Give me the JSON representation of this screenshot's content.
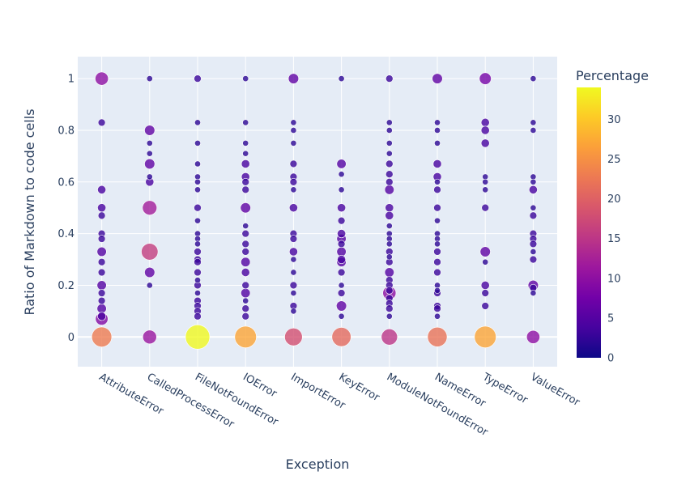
{
  "chart_data": {
    "type": "scatter",
    "title": "",
    "xlabel": "Exception",
    "ylabel": "Ratio of Markdown to code cells",
    "categories": [
      "AttributeError",
      "CalledProcessError",
      "FileNotFoundError",
      "IOError",
      "ImportError",
      "KeyError",
      "ModuleNotFoundError",
      "NameError",
      "TypeError",
      "ValueError"
    ],
    "ylim": [
      -0.115,
      1.085
    ],
    "yticks": [
      0,
      0.2,
      0.4,
      0.6,
      0.8,
      1
    ],
    "ytick_labels": [
      "0",
      "0.2",
      "0.4",
      "0.6",
      "0.8",
      "1"
    ],
    "colorbar": {
      "title": "Percentage",
      "range": [
        0,
        34
      ],
      "ticks": [
        0,
        5,
        10,
        15,
        20,
        25,
        30
      ],
      "tick_labels": [
        "0",
        "5",
        "10",
        "15",
        "20",
        "25",
        "30"
      ]
    },
    "colors": {
      "plot_bg": "#e5ecf6",
      "grid": "#ffffff",
      "text": "#2a3f5f"
    },
    "points": [
      {
        "cat": "AttributeError",
        "y": 0,
        "pct": 23
      },
      {
        "cat": "AttributeError",
        "y": 1,
        "pct": 10
      },
      {
        "cat": "AttributeError",
        "y": 0.83,
        "pct": 3
      },
      {
        "cat": "AttributeError",
        "y": 0.57,
        "pct": 4
      },
      {
        "cat": "AttributeError",
        "y": 0.5,
        "pct": 4
      },
      {
        "cat": "AttributeError",
        "y": 0.47,
        "pct": 3
      },
      {
        "cat": "AttributeError",
        "y": 0.4,
        "pct": 3
      },
      {
        "cat": "AttributeError",
        "y": 0.38,
        "pct": 3
      },
      {
        "cat": "AttributeError",
        "y": 0.33,
        "pct": 5
      },
      {
        "cat": "AttributeError",
        "y": 0.29,
        "pct": 3
      },
      {
        "cat": "AttributeError",
        "y": 0.25,
        "pct": 3
      },
      {
        "cat": "AttributeError",
        "y": 0.2,
        "pct": 5
      },
      {
        "cat": "AttributeError",
        "y": 0.17,
        "pct": 3
      },
      {
        "cat": "AttributeError",
        "y": 0.14,
        "pct": 3
      },
      {
        "cat": "AttributeError",
        "y": 0.11,
        "pct": 5
      },
      {
        "cat": "AttributeError",
        "y": 0.08,
        "pct": 4
      },
      {
        "cat": "AttributeError",
        "y": 0.07,
        "pct": 9
      },
      {
        "cat": "CalledProcessError",
        "y": 0,
        "pct": 11
      },
      {
        "cat": "CalledProcessError",
        "y": 1,
        "pct": 2
      },
      {
        "cat": "CalledProcessError",
        "y": 0.8,
        "pct": 6
      },
      {
        "cat": "CalledProcessError",
        "y": 0.75,
        "pct": 2
      },
      {
        "cat": "CalledProcessError",
        "y": 0.71,
        "pct": 2
      },
      {
        "cat": "CalledProcessError",
        "y": 0.67,
        "pct": 6
      },
      {
        "cat": "CalledProcessError",
        "y": 0.62,
        "pct": 2
      },
      {
        "cat": "CalledProcessError",
        "y": 0.6,
        "pct": 4
      },
      {
        "cat": "CalledProcessError",
        "y": 0.5,
        "pct": 12
      },
      {
        "cat": "CalledProcessError",
        "y": 0.33,
        "pct": 16
      },
      {
        "cat": "CalledProcessError",
        "y": 0.25,
        "pct": 6
      },
      {
        "cat": "CalledProcessError",
        "y": 0.2,
        "pct": 2
      },
      {
        "cat": "FileNotFoundError",
        "y": 0,
        "pct": 34
      },
      {
        "cat": "FileNotFoundError",
        "y": 1,
        "pct": 3
      },
      {
        "cat": "FileNotFoundError",
        "y": 0.83,
        "pct": 2
      },
      {
        "cat": "FileNotFoundError",
        "y": 0.75,
        "pct": 2
      },
      {
        "cat": "FileNotFoundError",
        "y": 0.67,
        "pct": 2
      },
      {
        "cat": "FileNotFoundError",
        "y": 0.62,
        "pct": 2
      },
      {
        "cat": "FileNotFoundError",
        "y": 0.6,
        "pct": 2
      },
      {
        "cat": "FileNotFoundError",
        "y": 0.57,
        "pct": 2
      },
      {
        "cat": "FileNotFoundError",
        "y": 0.5,
        "pct": 3
      },
      {
        "cat": "FileNotFoundError",
        "y": 0.45,
        "pct": 2
      },
      {
        "cat": "FileNotFoundError",
        "y": 0.4,
        "pct": 2
      },
      {
        "cat": "FileNotFoundError",
        "y": 0.38,
        "pct": 2
      },
      {
        "cat": "FileNotFoundError",
        "y": 0.36,
        "pct": 2
      },
      {
        "cat": "FileNotFoundError",
        "y": 0.33,
        "pct": 3
      },
      {
        "cat": "FileNotFoundError",
        "y": 0.3,
        "pct": 3
      },
      {
        "cat": "FileNotFoundError",
        "y": 0.29,
        "pct": 3
      },
      {
        "cat": "FileNotFoundError",
        "y": 0.25,
        "pct": 3
      },
      {
        "cat": "FileNotFoundError",
        "y": 0.22,
        "pct": 2
      },
      {
        "cat": "FileNotFoundError",
        "y": 0.2,
        "pct": 3
      },
      {
        "cat": "FileNotFoundError",
        "y": 0.17,
        "pct": 2
      },
      {
        "cat": "FileNotFoundError",
        "y": 0.14,
        "pct": 3
      },
      {
        "cat": "FileNotFoundError",
        "y": 0.12,
        "pct": 3
      },
      {
        "cat": "FileNotFoundError",
        "y": 0.1,
        "pct": 3
      },
      {
        "cat": "FileNotFoundError",
        "y": 0.08,
        "pct": 3
      },
      {
        "cat": "IOError",
        "y": 0,
        "pct": 27
      },
      {
        "cat": "IOError",
        "y": 1,
        "pct": 2
      },
      {
        "cat": "IOError",
        "y": 0.83,
        "pct": 2
      },
      {
        "cat": "IOError",
        "y": 0.75,
        "pct": 2
      },
      {
        "cat": "IOError",
        "y": 0.71,
        "pct": 2
      },
      {
        "cat": "IOError",
        "y": 0.67,
        "pct": 4
      },
      {
        "cat": "IOError",
        "y": 0.62,
        "pct": 4
      },
      {
        "cat": "IOError",
        "y": 0.6,
        "pct": 3
      },
      {
        "cat": "IOError",
        "y": 0.57,
        "pct": 3
      },
      {
        "cat": "IOError",
        "y": 0.5,
        "pct": 6
      },
      {
        "cat": "IOError",
        "y": 0.43,
        "pct": 2
      },
      {
        "cat": "IOError",
        "y": 0.4,
        "pct": 3
      },
      {
        "cat": "IOError",
        "y": 0.36,
        "pct": 3
      },
      {
        "cat": "IOError",
        "y": 0.33,
        "pct": 3
      },
      {
        "cat": "IOError",
        "y": 0.29,
        "pct": 5
      },
      {
        "cat": "IOError",
        "y": 0.25,
        "pct": 4
      },
      {
        "cat": "IOError",
        "y": 0.2,
        "pct": 3
      },
      {
        "cat": "IOError",
        "y": 0.17,
        "pct": 5
      },
      {
        "cat": "IOError",
        "y": 0.14,
        "pct": 2
      },
      {
        "cat": "IOError",
        "y": 0.11,
        "pct": 3
      },
      {
        "cat": "IOError",
        "y": 0.08,
        "pct": 3
      },
      {
        "cat": "ImportError",
        "y": 0,
        "pct": 18
      },
      {
        "cat": "ImportError",
        "y": 1,
        "pct": 6
      },
      {
        "cat": "ImportError",
        "y": 0.83,
        "pct": 2
      },
      {
        "cat": "ImportError",
        "y": 0.8,
        "pct": 2
      },
      {
        "cat": "ImportError",
        "y": 0.75,
        "pct": 2
      },
      {
        "cat": "ImportError",
        "y": 0.67,
        "pct": 3
      },
      {
        "cat": "ImportError",
        "y": 0.62,
        "pct": 3
      },
      {
        "cat": "ImportError",
        "y": 0.6,
        "pct": 3
      },
      {
        "cat": "ImportError",
        "y": 0.57,
        "pct": 2
      },
      {
        "cat": "ImportError",
        "y": 0.5,
        "pct": 4
      },
      {
        "cat": "ImportError",
        "y": 0.4,
        "pct": 3
      },
      {
        "cat": "ImportError",
        "y": 0.38,
        "pct": 3
      },
      {
        "cat": "ImportError",
        "y": 0.33,
        "pct": 4
      },
      {
        "cat": "ImportError",
        "y": 0.3,
        "pct": 2
      },
      {
        "cat": "ImportError",
        "y": 0.25,
        "pct": 2
      },
      {
        "cat": "ImportError",
        "y": 0.2,
        "pct": 3
      },
      {
        "cat": "ImportError",
        "y": 0.17,
        "pct": 2
      },
      {
        "cat": "ImportError",
        "y": 0.12,
        "pct": 3
      },
      {
        "cat": "ImportError",
        "y": 0.1,
        "pct": 2
      },
      {
        "cat": "KeyError",
        "y": 0,
        "pct": 21
      },
      {
        "cat": "KeyError",
        "y": 1,
        "pct": 2
      },
      {
        "cat": "KeyError",
        "y": 0.67,
        "pct": 5
      },
      {
        "cat": "KeyError",
        "y": 0.63,
        "pct": 2
      },
      {
        "cat": "KeyError",
        "y": 0.57,
        "pct": 2
      },
      {
        "cat": "KeyError",
        "y": 0.5,
        "pct": 4
      },
      {
        "cat": "KeyError",
        "y": 0.45,
        "pct": 3
      },
      {
        "cat": "KeyError",
        "y": 0.4,
        "pct": 4
      },
      {
        "cat": "KeyError",
        "y": 0.38,
        "pct": 5
      },
      {
        "cat": "KeyError",
        "y": 0.36,
        "pct": 3
      },
      {
        "cat": "KeyError",
        "y": 0.33,
        "pct": 5
      },
      {
        "cat": "KeyError",
        "y": 0.3,
        "pct": 4
      },
      {
        "cat": "KeyError",
        "y": 0.29,
        "pct": 5
      },
      {
        "cat": "KeyError",
        "y": 0.25,
        "pct": 3
      },
      {
        "cat": "KeyError",
        "y": 0.2,
        "pct": 2
      },
      {
        "cat": "KeyError",
        "y": 0.17,
        "pct": 3
      },
      {
        "cat": "KeyError",
        "y": 0.12,
        "pct": 6
      },
      {
        "cat": "KeyError",
        "y": 0.08,
        "pct": 2
      },
      {
        "cat": "ModuleNotFoundError",
        "y": 0,
        "pct": 15
      },
      {
        "cat": "ModuleNotFoundError",
        "y": 1,
        "pct": 3
      },
      {
        "cat": "ModuleNotFoundError",
        "y": 0.83,
        "pct": 2
      },
      {
        "cat": "ModuleNotFoundError",
        "y": 0.8,
        "pct": 2
      },
      {
        "cat": "ModuleNotFoundError",
        "y": 0.75,
        "pct": 2
      },
      {
        "cat": "ModuleNotFoundError",
        "y": 0.71,
        "pct": 2
      },
      {
        "cat": "ModuleNotFoundError",
        "y": 0.67,
        "pct": 3
      },
      {
        "cat": "ModuleNotFoundError",
        "y": 0.63,
        "pct": 3
      },
      {
        "cat": "ModuleNotFoundError",
        "y": 0.6,
        "pct": 3
      },
      {
        "cat": "ModuleNotFoundError",
        "y": 0.57,
        "pct": 5
      },
      {
        "cat": "ModuleNotFoundError",
        "y": 0.5,
        "pct": 4
      },
      {
        "cat": "ModuleNotFoundError",
        "y": 0.47,
        "pct": 4
      },
      {
        "cat": "ModuleNotFoundError",
        "y": 0.43,
        "pct": 2
      },
      {
        "cat": "ModuleNotFoundError",
        "y": 0.4,
        "pct": 2
      },
      {
        "cat": "ModuleNotFoundError",
        "y": 0.38,
        "pct": 2
      },
      {
        "cat": "ModuleNotFoundError",
        "y": 0.36,
        "pct": 2
      },
      {
        "cat": "ModuleNotFoundError",
        "y": 0.33,
        "pct": 3
      },
      {
        "cat": "ModuleNotFoundError",
        "y": 0.31,
        "pct": 2
      },
      {
        "cat": "ModuleNotFoundError",
        "y": 0.29,
        "pct": 3
      },
      {
        "cat": "ModuleNotFoundError",
        "y": 0.25,
        "pct": 5
      },
      {
        "cat": "ModuleNotFoundError",
        "y": 0.22,
        "pct": 3
      },
      {
        "cat": "ModuleNotFoundError",
        "y": 0.2,
        "pct": 3
      },
      {
        "cat": "ModuleNotFoundError",
        "y": 0.18,
        "pct": 3
      },
      {
        "cat": "ModuleNotFoundError",
        "y": 0.17,
        "pct": 10
      },
      {
        "cat": "ModuleNotFoundError",
        "y": 0.15,
        "pct": 3
      },
      {
        "cat": "ModuleNotFoundError",
        "y": 0.13,
        "pct": 3
      },
      {
        "cat": "ModuleNotFoundError",
        "y": 0.11,
        "pct": 3
      },
      {
        "cat": "ModuleNotFoundError",
        "y": 0.08,
        "pct": 2
      },
      {
        "cat": "NameError",
        "y": 0,
        "pct": 22
      },
      {
        "cat": "NameError",
        "y": 1,
        "pct": 6
      },
      {
        "cat": "NameError",
        "y": 0.83,
        "pct": 2
      },
      {
        "cat": "NameError",
        "y": 0.8,
        "pct": 2
      },
      {
        "cat": "NameError",
        "y": 0.75,
        "pct": 2
      },
      {
        "cat": "NameError",
        "y": 0.67,
        "pct": 4
      },
      {
        "cat": "NameError",
        "y": 0.62,
        "pct": 4
      },
      {
        "cat": "NameError",
        "y": 0.6,
        "pct": 2
      },
      {
        "cat": "NameError",
        "y": 0.57,
        "pct": 3
      },
      {
        "cat": "NameError",
        "y": 0.5,
        "pct": 3
      },
      {
        "cat": "NameError",
        "y": 0.45,
        "pct": 2
      },
      {
        "cat": "NameError",
        "y": 0.4,
        "pct": 2
      },
      {
        "cat": "NameError",
        "y": 0.38,
        "pct": 2
      },
      {
        "cat": "NameError",
        "y": 0.36,
        "pct": 2
      },
      {
        "cat": "NameError",
        "y": 0.33,
        "pct": 3
      },
      {
        "cat": "NameError",
        "y": 0.29,
        "pct": 3
      },
      {
        "cat": "NameError",
        "y": 0.25,
        "pct": 3
      },
      {
        "cat": "NameError",
        "y": 0.2,
        "pct": 2
      },
      {
        "cat": "NameError",
        "y": 0.18,
        "pct": 2
      },
      {
        "cat": "NameError",
        "y": 0.17,
        "pct": 3
      },
      {
        "cat": "NameError",
        "y": 0.12,
        "pct": 3
      },
      {
        "cat": "NameError",
        "y": 0.11,
        "pct": 3
      },
      {
        "cat": "NameError",
        "y": 0.08,
        "pct": 2
      },
      {
        "cat": "TypeError",
        "y": 0,
        "pct": 27
      },
      {
        "cat": "TypeError",
        "y": 1,
        "pct": 8
      },
      {
        "cat": "TypeError",
        "y": 0.83,
        "pct": 4
      },
      {
        "cat": "TypeError",
        "y": 0.8,
        "pct": 4
      },
      {
        "cat": "TypeError",
        "y": 0.75,
        "pct": 4
      },
      {
        "cat": "TypeError",
        "y": 0.62,
        "pct": 2
      },
      {
        "cat": "TypeError",
        "y": 0.6,
        "pct": 2
      },
      {
        "cat": "TypeError",
        "y": 0.57,
        "pct": 2
      },
      {
        "cat": "TypeError",
        "y": 0.5,
        "pct": 3
      },
      {
        "cat": "TypeError",
        "y": 0.33,
        "pct": 6
      },
      {
        "cat": "TypeError",
        "y": 0.29,
        "pct": 2
      },
      {
        "cat": "TypeError",
        "y": 0.2,
        "pct": 4
      },
      {
        "cat": "TypeError",
        "y": 0.17,
        "pct": 3
      },
      {
        "cat": "TypeError",
        "y": 0.12,
        "pct": 3
      },
      {
        "cat": "ValueError",
        "y": 0,
        "pct": 10
      },
      {
        "cat": "ValueError",
        "y": 1,
        "pct": 2
      },
      {
        "cat": "ValueError",
        "y": 0.83,
        "pct": 2
      },
      {
        "cat": "ValueError",
        "y": 0.8,
        "pct": 2
      },
      {
        "cat": "ValueError",
        "y": 0.62,
        "pct": 2
      },
      {
        "cat": "ValueError",
        "y": 0.6,
        "pct": 2
      },
      {
        "cat": "ValueError",
        "y": 0.57,
        "pct": 4
      },
      {
        "cat": "ValueError",
        "y": 0.5,
        "pct": 2
      },
      {
        "cat": "ValueError",
        "y": 0.47,
        "pct": 3
      },
      {
        "cat": "ValueError",
        "y": 0.4,
        "pct": 3
      },
      {
        "cat": "ValueError",
        "y": 0.38,
        "pct": 3
      },
      {
        "cat": "ValueError",
        "y": 0.36,
        "pct": 3
      },
      {
        "cat": "ValueError",
        "y": 0.33,
        "pct": 2
      },
      {
        "cat": "ValueError",
        "y": 0.3,
        "pct": 3
      },
      {
        "cat": "ValueError",
        "y": 0.2,
        "pct": 6
      },
      {
        "cat": "ValueError",
        "y": 0.19,
        "pct": 3
      },
      {
        "cat": "ValueError",
        "y": 0.17,
        "pct": 2
      }
    ]
  }
}
